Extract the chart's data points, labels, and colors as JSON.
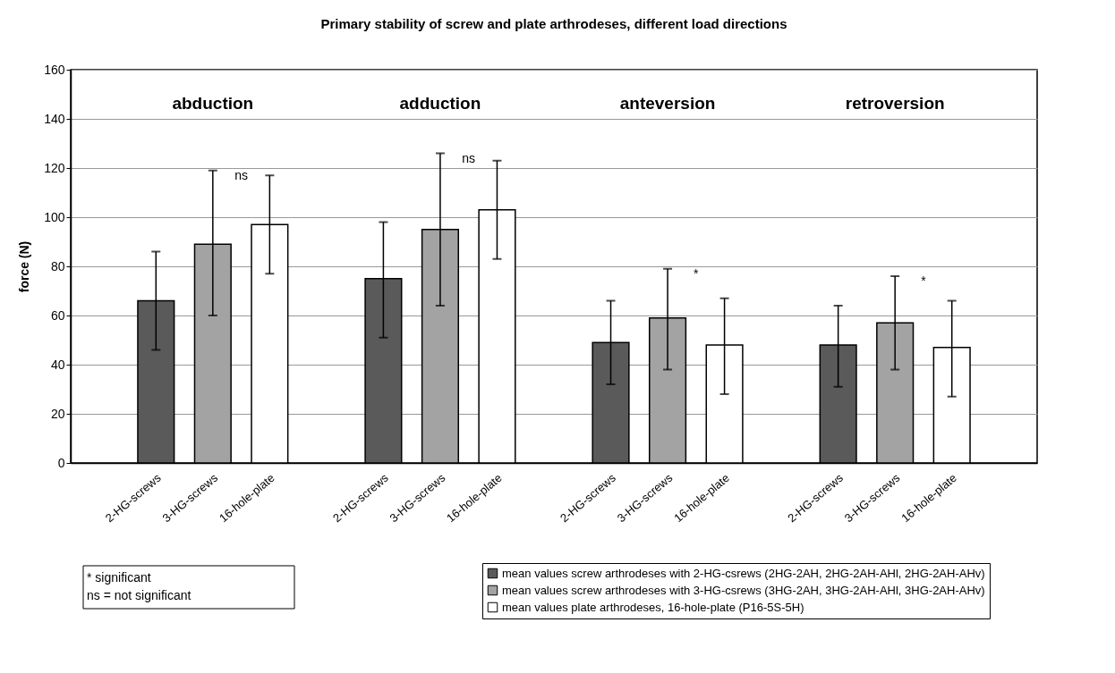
{
  "chart_data": {
    "type": "bar",
    "title": "Primary stability of screw and plate arthrodeses, different load directions",
    "ylabel": "force (N)",
    "categories": [
      null,
      "2-HG-screws",
      "3-HG-screws",
      "16-hole-plate",
      null,
      "2-HG-screws",
      "3-HG-screws",
      "16-hole-plate",
      null,
      "2-HG-screws",
      "3-HG-screws",
      "16-hole-plate",
      null,
      "2-HG-screws",
      "3-HG-screws",
      "16-hole-plate",
      null
    ],
    "series": [
      {
        "name": "mean values screw arthrodeses with 2-HG-csrews (2HG-2AH, 2HG-2AH-AHl, 2HG-2AH-AHv)",
        "color": "#5a5a5a",
        "values": [
          null,
          66,
          null,
          null,
          null,
          75,
          null,
          null,
          null,
          49,
          null,
          null,
          null,
          48,
          null,
          null,
          null
        ],
        "errors": [
          null,
          [
            46,
            86
          ],
          null,
          null,
          null,
          [
            51,
            98
          ],
          null,
          null,
          null,
          [
            32,
            66
          ],
          null,
          null,
          null,
          [
            31,
            64
          ],
          null,
          null,
          null
        ]
      },
      {
        "name": "mean values screw arthrodeses with 3-HG-csrews (3HG-2AH, 3HG-2AH-AHl, 3HG-2AH-AHv)",
        "color": "#a3a3a3",
        "values": [
          null,
          null,
          89,
          null,
          null,
          null,
          95,
          null,
          null,
          null,
          59,
          null,
          null,
          null,
          57,
          null,
          null
        ],
        "errors": [
          null,
          null,
          [
            60,
            119
          ],
          null,
          null,
          null,
          [
            64,
            126
          ],
          null,
          null,
          null,
          [
            38,
            79
          ],
          null,
          null,
          null,
          [
            38,
            76
          ],
          null,
          null
        ]
      },
      {
        "name": "mean values plate arthrodeses, 16-hole-plate (P16-5S-5H)",
        "color": "#ffffff",
        "values": [
          null,
          null,
          null,
          97,
          null,
          null,
          null,
          103,
          null,
          null,
          null,
          48,
          null,
          null,
          null,
          47,
          null
        ],
        "errors": [
          null,
          null,
          null,
          [
            77,
            117
          ],
          null,
          null,
          null,
          [
            83,
            123
          ],
          null,
          null,
          null,
          [
            28,
            67
          ],
          null,
          null,
          null,
          [
            27,
            66
          ],
          null
        ]
      }
    ],
    "ylim": [
      0,
      160
    ],
    "yticks": [
      0,
      20,
      40,
      60,
      80,
      100,
      120,
      140,
      160
    ],
    "grid": "y",
    "legend": "bottom right",
    "annotations": [
      "abduction",
      "adduction",
      "anteversion",
      "retroversion",
      "ns",
      "ns",
      "*",
      "*",
      "*   significant",
      "ns = not significant"
    ]
  }
}
